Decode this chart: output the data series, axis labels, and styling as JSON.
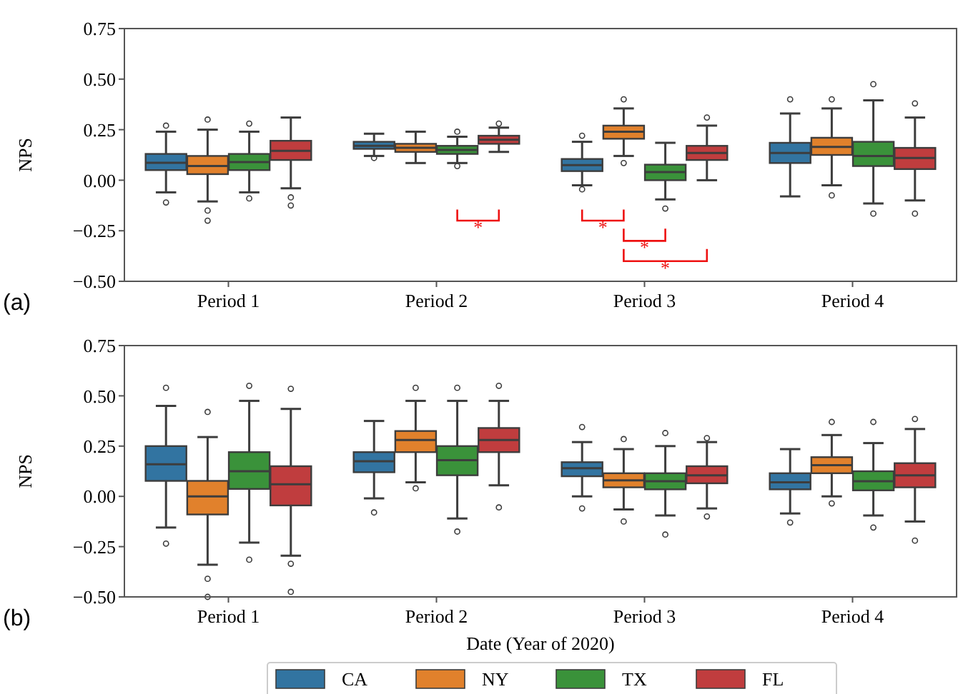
{
  "chart_data": [
    {
      "type": "box",
      "ylabel": "NPS",
      "categories": [
        "Period 1",
        "Period 2",
        "Period 3",
        "Period 4"
      ],
      "ylim": [
        -0.5,
        0.75
      ],
      "yticks": [
        {
          "value": -0.5,
          "label": "−0.50"
        },
        {
          "value": -0.25,
          "label": "−0.25"
        },
        {
          "value": 0,
          "label": "0.00"
        },
        {
          "value": 0.25,
          "label": "0.25"
        },
        {
          "value": 0.5,
          "label": "0.50"
        },
        {
          "value": 0.75,
          "label": "0.75"
        }
      ],
      "legend": false,
      "annotations": [
        "(a)",
        "*",
        "*",
        "*",
        "*"
      ],
      "series": [
        {
          "color": "#3274a1",
          "boxes": [
            {
              "low": -0.06,
              "q1": 0.05,
              "median": 0.086,
              "q3": 0.13,
              "high": 0.24,
              "outliers": [
                0.27,
                -0.11
              ]
            },
            {
              "low": 0.12,
              "q1": 0.155,
              "median": 0.17,
              "q3": 0.19,
              "high": 0.23,
              "outliers": [
                0.11
              ]
            },
            {
              "low": -0.025,
              "q1": 0.045,
              "median": 0.075,
              "q3": 0.105,
              "high": 0.19,
              "outliers": [
                0.22,
                -0.045
              ]
            },
            {
              "low": -0.08,
              "q1": 0.085,
              "median": 0.135,
              "q3": 0.185,
              "high": 0.33,
              "outliers": [
                0.4
              ]
            }
          ]
        },
        {
          "color": "#e1812c",
          "boxes": [
            {
              "low": -0.105,
              "q1": 0.03,
              "median": 0.07,
              "q3": 0.12,
              "high": 0.25,
              "outliers": [
                0.3,
                -0.15,
                -0.2
              ]
            },
            {
              "low": 0.085,
              "q1": 0.14,
              "median": 0.16,
              "q3": 0.18,
              "high": 0.24
            },
            {
              "low": 0.12,
              "q1": 0.205,
              "median": 0.24,
              "q3": 0.27,
              "high": 0.355,
              "outliers": [
                0.4,
                0.085
              ]
            },
            {
              "low": -0.025,
              "q1": 0.125,
              "median": 0.165,
              "q3": 0.21,
              "high": 0.355,
              "outliers": [
                0.4,
                -0.075
              ]
            }
          ]
        },
        {
          "color": "#3a923a",
          "boxes": [
            {
              "low": -0.06,
              "q1": 0.05,
              "median": 0.09,
              "q3": 0.13,
              "high": 0.24,
              "outliers": [
                0.28,
                -0.09
              ]
            },
            {
              "low": 0.085,
              "q1": 0.13,
              "median": 0.15,
              "q3": 0.17,
              "high": 0.215,
              "outliers": [
                0.24,
                0.07
              ]
            },
            {
              "low": -0.095,
              "q1": 0,
              "median": 0.04,
              "q3": 0.077,
              "high": 0.185,
              "outliers": [
                -0.14
              ]
            },
            {
              "low": -0.115,
              "q1": 0.07,
              "median": 0.12,
              "q3": 0.19,
              "high": 0.395,
              "outliers": [
                0.475,
                -0.165
              ]
            }
          ]
        },
        {
          "color": "#c03d3e",
          "boxes": [
            {
              "low": -0.04,
              "q1": 0.1,
              "median": 0.145,
              "q3": 0.195,
              "high": 0.31,
              "outliers": [
                -0.085,
                -0.125
              ]
            },
            {
              "low": 0.14,
              "q1": 0.18,
              "median": 0.2,
              "q3": 0.22,
              "high": 0.26,
              "outliers": [
                0.28
              ]
            },
            {
              "low": 0,
              "q1": 0.1,
              "median": 0.135,
              "q3": 0.17,
              "high": 0.27,
              "outliers": [
                0.31
              ]
            },
            {
              "low": -0.1,
              "q1": 0.055,
              "median": 0.11,
              "q3": 0.16,
              "high": 0.31,
              "outliers": [
                0.38,
                -0.165
              ]
            }
          ]
        }
      ]
    },
    {
      "type": "box",
      "xlabel": "Date (Year of 2020)",
      "ylabel": "NPS",
      "categories": [
        "Period 1",
        "Period 2",
        "Period 3",
        "Period 4"
      ],
      "ylim": [
        -0.5,
        0.75
      ],
      "yticks": [
        {
          "value": -0.5,
          "label": "−0.50"
        },
        {
          "value": -0.25,
          "label": "−0.25"
        },
        {
          "value": 0,
          "label": "0.00"
        },
        {
          "value": 0.25,
          "label": "0.25"
        },
        {
          "value": 0.5,
          "label": "0.50"
        },
        {
          "value": 0.75,
          "label": "0.75"
        }
      ],
      "legend": "bottom",
      "annotations": [
        "(b)"
      ],
      "series": [
        {
          "name": "CA",
          "color": "#3274a1",
          "boxes": [
            {
              "low": -0.155,
              "q1": 0.077,
              "median": 0.16,
              "q3": 0.25,
              "high": 0.45,
              "outliers": [
                0.54,
                -0.235
              ]
            },
            {
              "low": -0.01,
              "q1": 0.12,
              "median": 0.175,
              "q3": 0.22,
              "high": 0.375,
              "outliers": [
                -0.08
              ]
            },
            {
              "low": 0,
              "q1": 0.1,
              "median": 0.14,
              "q3": 0.17,
              "high": 0.27,
              "outliers": [
                0.345,
                -0.06
              ]
            },
            {
              "low": -0.085,
              "q1": 0.035,
              "median": 0.07,
              "q3": 0.115,
              "high": 0.235,
              "outliers": [
                -0.13
              ]
            }
          ]
        },
        {
          "name": "NY",
          "color": "#e1812c",
          "boxes": [
            {
              "low": -0.34,
              "q1": -0.09,
              "median": 0,
              "q3": 0.077,
              "high": 0.295,
              "outliers": [
                0.42,
                -0.41,
                -0.5
              ]
            },
            {
              "low": 0.07,
              "q1": 0.22,
              "median": 0.28,
              "q3": 0.325,
              "high": 0.475,
              "outliers": [
                0.54,
                0.04
              ]
            },
            {
              "low": -0.065,
              "q1": 0.045,
              "median": 0.08,
              "q3": 0.115,
              "high": 0.235,
              "outliers": [
                0.285,
                -0.125
              ]
            },
            {
              "low": 0,
              "q1": 0.115,
              "median": 0.155,
              "q3": 0.195,
              "high": 0.305,
              "outliers": [
                0.37,
                -0.035
              ]
            }
          ]
        },
        {
          "name": "TX",
          "color": "#3a923a",
          "boxes": [
            {
              "low": -0.23,
              "q1": 0.037,
              "median": 0.125,
              "q3": 0.22,
              "high": 0.475,
              "outliers": [
                0.55,
                -0.315
              ]
            },
            {
              "low": -0.11,
              "q1": 0.105,
              "median": 0.18,
              "q3": 0.25,
              "high": 0.475,
              "outliers": [
                0.54,
                -0.175
              ]
            },
            {
              "low": -0.095,
              "q1": 0.035,
              "median": 0.075,
              "q3": 0.115,
              "high": 0.25,
              "outliers": [
                0.315,
                -0.19
              ]
            },
            {
              "low": -0.095,
              "q1": 0.03,
              "median": 0.075,
              "q3": 0.125,
              "high": 0.265,
              "outliers": [
                0.37,
                -0.155
              ]
            }
          ]
        },
        {
          "name": "FL",
          "color": "#c03d3e",
          "boxes": [
            {
              "low": -0.295,
              "q1": -0.045,
              "median": 0.06,
              "q3": 0.15,
              "high": 0.435,
              "outliers": [
                0.535,
                -0.335,
                -0.475
              ]
            },
            {
              "low": 0.055,
              "q1": 0.22,
              "median": 0.28,
              "q3": 0.34,
              "high": 0.475,
              "outliers": [
                0.55,
                -0.055
              ]
            },
            {
              "low": -0.06,
              "q1": 0.065,
              "median": 0.105,
              "q3": 0.15,
              "high": 0.27,
              "outliers": [
                0.29,
                -0.1
              ]
            },
            {
              "low": -0.125,
              "q1": 0.045,
              "median": 0.105,
              "q3": 0.165,
              "high": 0.335,
              "outliers": [
                0.385,
                -0.22
              ]
            }
          ]
        }
      ]
    }
  ]
}
